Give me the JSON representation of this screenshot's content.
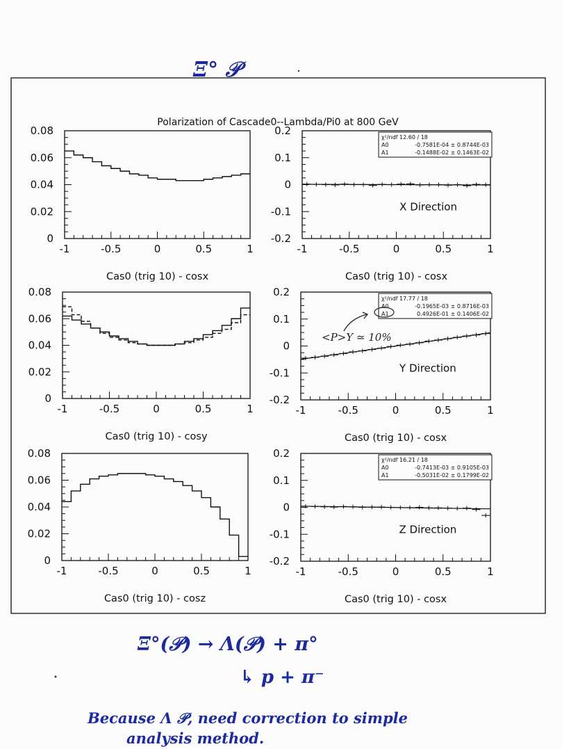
{
  "annotations": {
    "top": "Ξ° 𝒫",
    "eq1": "Ξ°(𝒫) → Λ(𝒫) + π°",
    "eq2": "↳ p + π⁻",
    "note1": "Because Λ 𝒫, need correction to simple",
    "note2": "analysis method.",
    "py_note": "<P>Y ≃ 10%"
  },
  "chart_data": [
    {
      "type": "line",
      "title": "Polarization of Cascade0--Lambda/Pi0 at 800 GeV",
      "xlabel": "Cas0 (trig 10) - cosx",
      "xlim": [
        -1,
        1
      ],
      "ylim": [
        0,
        0.08
      ],
      "xticks": [
        "-1",
        "-0.5",
        "0",
        "0.5",
        "1"
      ],
      "yticks": [
        "0",
        "0.02",
        "0.04",
        "0.06",
        "0.08"
      ],
      "x": [
        -0.95,
        -0.85,
        -0.75,
        -0.65,
        -0.55,
        -0.45,
        -0.35,
        -0.25,
        -0.15,
        -0.05,
        0.05,
        0.15,
        0.25,
        0.35,
        0.45,
        0.55,
        0.65,
        0.75,
        0.85,
        0.95
      ],
      "series": [
        {
          "values": [
            0.065,
            0.062,
            0.06,
            0.057,
            0.054,
            0.052,
            0.05,
            0.048,
            0.047,
            0.045,
            0.044,
            0.044,
            0.043,
            0.043,
            0.043,
            0.044,
            0.045,
            0.046,
            0.047,
            0.048
          ]
        }
      ]
    },
    {
      "type": "line",
      "direction": "X Direction",
      "xlabel": "Cas0 (trig 10) - cosx",
      "xlim": [
        -1,
        1
      ],
      "ylim": [
        -0.2,
        0.2
      ],
      "xticks": [
        "-1",
        "-0.5",
        "0",
        "0.5",
        "1"
      ],
      "yticks": [
        "-0.2",
        "-0.1",
        "0",
        "0.1",
        "0.2"
      ],
      "stats": [
        [
          "χ²/ndf 12.60  /  18",
          ""
        ],
        [
          "A0",
          "-0.7581E-04 ±  0.8744E-03"
        ],
        [
          "A1",
          "-0.1488E-02 ±  0.1463E-02"
        ]
      ],
      "x": [
        -0.95,
        -0.85,
        -0.75,
        -0.65,
        -0.55,
        -0.45,
        -0.35,
        -0.25,
        -0.15,
        -0.05,
        0.05,
        0.15,
        0.25,
        0.35,
        0.45,
        0.55,
        0.65,
        0.75,
        0.85,
        0.95
      ],
      "series": [
        {
          "values": [
            0.002,
            0.001,
            0.0,
            -0.001,
            0.002,
            0.0,
            0.0,
            -0.003,
            0.001,
            0.0,
            0.002,
            0.003,
            -0.001,
            0.0,
            0.0,
            -0.002,
            0.0,
            -0.004,
            0.001,
            0.0
          ]
        }
      ],
      "fit": [
        0.0,
        -0.0015
      ]
    },
    {
      "type": "line",
      "xlabel": "Cas0 (trig 10) - cosy",
      "xlim": [
        -1,
        1
      ],
      "ylim": [
        0,
        0.08
      ],
      "xticks": [
        "-1",
        "-0.5",
        "0",
        "0.5",
        "1"
      ],
      "yticks": [
        "0",
        "0.02",
        "0.04",
        "0.06",
        "0.08"
      ],
      "x": [
        -0.95,
        -0.85,
        -0.75,
        -0.65,
        -0.55,
        -0.45,
        -0.35,
        -0.25,
        -0.15,
        -0.05,
        0.05,
        0.15,
        0.25,
        0.35,
        0.45,
        0.55,
        0.65,
        0.75,
        0.85,
        0.95
      ],
      "series": [
        {
          "values": [
            0.062,
            0.059,
            0.056,
            0.053,
            0.05,
            0.047,
            0.045,
            0.043,
            0.041,
            0.04,
            0.04,
            0.04,
            0.041,
            0.043,
            0.045,
            0.048,
            0.051,
            0.055,
            0.06,
            0.068
          ]
        },
        {
          "values": [
            0.069,
            0.063,
            0.058,
            0.053,
            0.049,
            0.046,
            0.044,
            0.042,
            0.041,
            0.04,
            0.04,
            0.04,
            0.041,
            0.042,
            0.044,
            0.046,
            0.049,
            0.052,
            0.057,
            0.063
          ],
          "dashed": true
        }
      ]
    },
    {
      "type": "line",
      "direction": "Y Direction",
      "xlabel": "Cas0 (trig 10) - cosx",
      "xlim": [
        -1,
        1
      ],
      "ylim": [
        -0.2,
        0.2
      ],
      "xticks": [
        "-1",
        "-0.5",
        "0",
        "0.5",
        "1"
      ],
      "yticks": [
        "-0.2",
        "-0.1",
        "0",
        "0.1",
        "0.2"
      ],
      "stats": [
        [
          "χ²/ndf 17.77  /  18",
          ""
        ],
        [
          "A0",
          "-0.1965E-03 ±  0.8716E-03"
        ],
        [
          "A1",
          "0.4926E-01 ±  0.1406E-02"
        ]
      ],
      "x": [
        -0.95,
        -0.85,
        -0.75,
        -0.65,
        -0.55,
        -0.45,
        -0.35,
        -0.25,
        -0.15,
        -0.05,
        0.05,
        0.15,
        0.25,
        0.35,
        0.45,
        0.55,
        0.65,
        0.75,
        0.85,
        0.95
      ],
      "series": [
        {
          "values": [
            -0.045,
            -0.042,
            -0.038,
            -0.033,
            -0.028,
            -0.022,
            -0.018,
            -0.013,
            -0.008,
            -0.002,
            0.003,
            0.007,
            0.012,
            0.018,
            0.022,
            0.027,
            0.032,
            0.037,
            0.041,
            0.046
          ]
        }
      ],
      "fit": [
        -0.0002,
        0.0493
      ]
    },
    {
      "type": "line",
      "xlabel": "Cas0 (trig 10) - cosz",
      "xlim": [
        -1,
        1
      ],
      "ylim": [
        0,
        0.08
      ],
      "xticks": [
        "-1",
        "-0.5",
        "0",
        "0.5",
        "1"
      ],
      "yticks": [
        "0",
        "0.02",
        "0.04",
        "0.06",
        "0.08"
      ],
      "x": [
        -0.95,
        -0.85,
        -0.75,
        -0.65,
        -0.55,
        -0.45,
        -0.35,
        -0.25,
        -0.15,
        -0.05,
        0.05,
        0.15,
        0.25,
        0.35,
        0.45,
        0.55,
        0.65,
        0.75,
        0.85,
        0.95
      ],
      "series": [
        {
          "values": [
            0.044,
            0.052,
            0.057,
            0.061,
            0.063,
            0.064,
            0.065,
            0.065,
            0.065,
            0.064,
            0.063,
            0.061,
            0.059,
            0.056,
            0.052,
            0.047,
            0.04,
            0.031,
            0.019,
            0.003
          ]
        }
      ]
    },
    {
      "type": "line",
      "direction": "Z Direction",
      "xlabel": "Cas0 (trig 10) - cosx",
      "xlim": [
        -1,
        1
      ],
      "ylim": [
        -0.2,
        0.2
      ],
      "xticks": [
        "-1",
        "-0.5",
        "0",
        "0.5",
        "1"
      ],
      "yticks": [
        "-0.2",
        "-0.1",
        "0",
        "0.1",
        "0.2"
      ],
      "stats": [
        [
          "χ²/ndf 16.21  /  18",
          ""
        ],
        [
          "A0",
          "-0.7413E-03 ±  0.9105E-03"
        ],
        [
          "A1",
          "-0.5031E-02 ±  0.1799E-02"
        ]
      ],
      "x": [
        -0.95,
        -0.85,
        -0.75,
        -0.65,
        -0.55,
        -0.45,
        -0.35,
        -0.25,
        -0.15,
        -0.05,
        0.05,
        0.15,
        0.25,
        0.35,
        0.45,
        0.55,
        0.65,
        0.75,
        0.85,
        0.95
      ],
      "series": [
        {
          "values": [
            0.004,
            0.003,
            0.002,
            0.001,
            0.003,
            0.002,
            0.0,
            0.001,
            0.001,
            0.0,
            -0.001,
            -0.001,
            0.0,
            -0.002,
            -0.002,
            -0.003,
            -0.004,
            -0.003,
            -0.008,
            -0.03
          ]
        }
      ],
      "fit": [
        -0.0007,
        -0.005
      ]
    }
  ]
}
